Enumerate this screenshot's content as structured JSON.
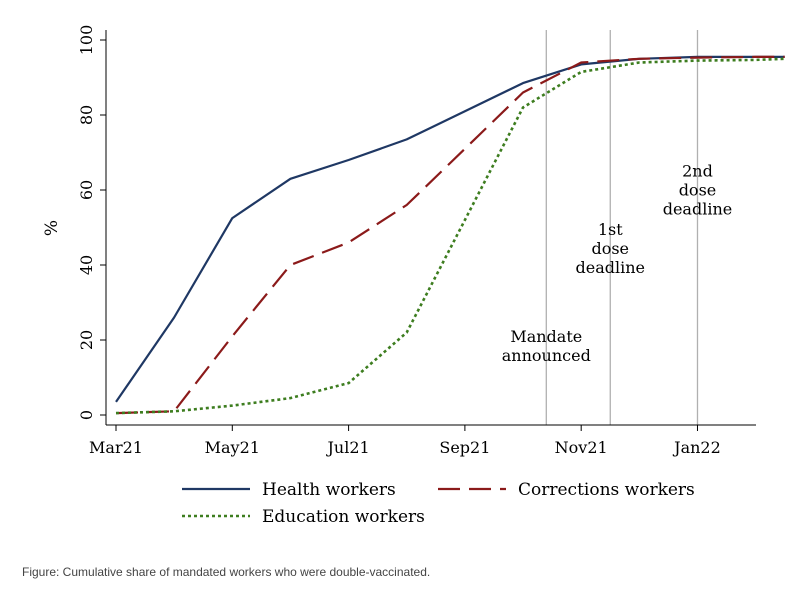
{
  "caption": "Figure: Cumulative share of mandated workers who were double-vaccinated.",
  "chart_data": {
    "type": "line",
    "title": "",
    "xlabel": "",
    "ylabel": "%",
    "x_ticks": [
      "Mar21",
      "May21",
      "Jul21",
      "Sep21",
      "Nov21",
      "Jan22"
    ],
    "y_ticks": [
      0,
      20,
      40,
      60,
      80,
      100
    ],
    "xlim": [
      0,
      11.5
    ],
    "ylim": [
      0,
      100
    ],
    "grid": false,
    "legend_position": "bottom",
    "series": [
      {
        "name": "Health workers",
        "color": "#1f3864",
        "dash": "solid",
        "x": [
          0,
          1,
          2,
          3,
          4,
          5,
          6,
          7,
          8,
          9,
          10,
          11,
          11.5
        ],
        "y": [
          3.5,
          26,
          52.5,
          63,
          68,
          73.5,
          81,
          88.5,
          93.5,
          95,
          95.5,
          95.5,
          95.5
        ]
      },
      {
        "name": "Corrections workers",
        "color": "#8b1a1a",
        "dash": "long",
        "x": [
          0,
          1,
          2,
          3,
          4,
          5,
          6,
          7,
          8,
          9,
          10,
          11,
          11.5
        ],
        "y": [
          0.5,
          1,
          21,
          40,
          46,
          56,
          71,
          86,
          94,
          95,
          95.3,
          95.5,
          95.5
        ]
      },
      {
        "name": "Education workers",
        "color": "#3d7d1f",
        "dash": "dotted",
        "x": [
          0,
          1,
          2,
          3,
          4,
          5,
          6,
          7,
          8,
          9,
          10,
          11,
          11.5
        ],
        "y": [
          0.5,
          1,
          2.5,
          4.5,
          8.5,
          22,
          52,
          82,
          91.5,
          94,
          94.5,
          94.7,
          95
        ]
      }
    ],
    "annotations": [
      {
        "x": 7.4,
        "label_lines": [
          "Mandate",
          "announced"
        ],
        "label_y": 15.5
      },
      {
        "x": 8.5,
        "label_lines": [
          "1st",
          "dose",
          "deadline"
        ],
        "label_y": 39
      },
      {
        "x": 10.0,
        "label_lines": [
          "2nd",
          "dose",
          "deadline"
        ],
        "label_y": 54.5
      }
    ]
  }
}
